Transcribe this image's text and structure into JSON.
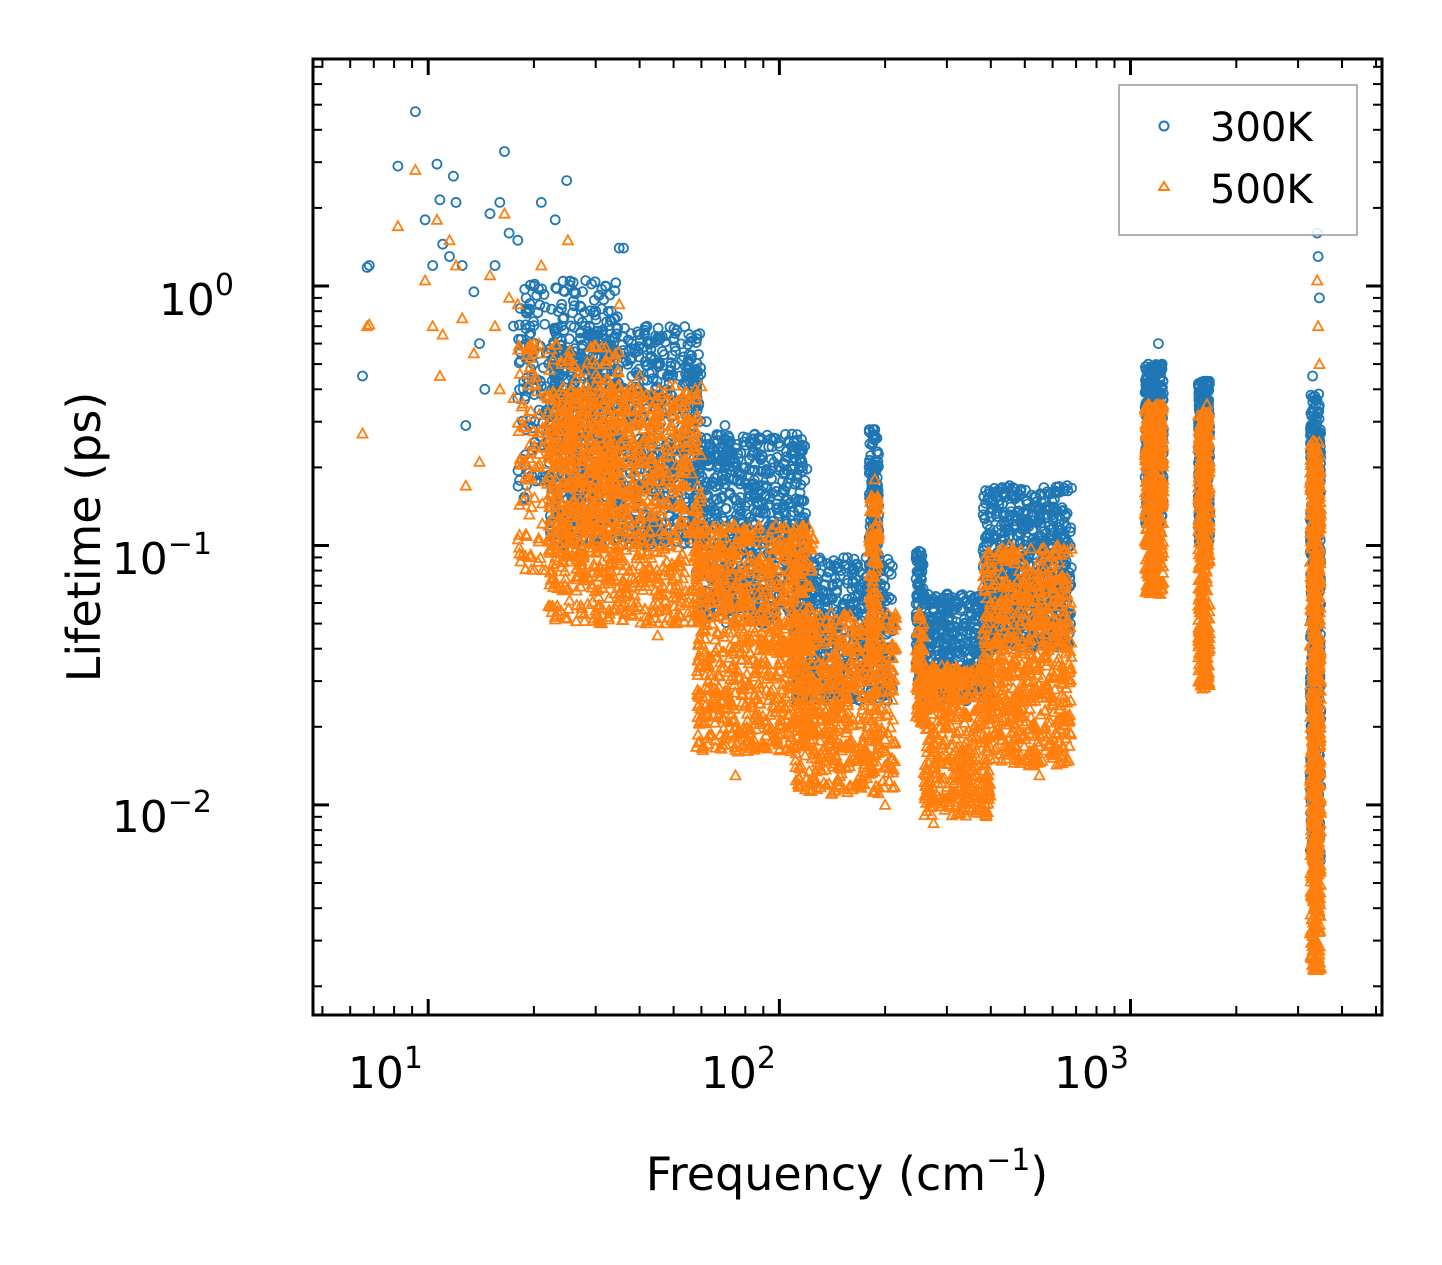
{
  "chart_data": {
    "type": "scatter",
    "xscale": "log",
    "yscale": "log",
    "xlim": [
      4.7,
      5200
    ],
    "ylim": [
      0.00155,
      7.5
    ],
    "xlabel": {
      "text": "Frequency (cm",
      "sup": "−1",
      "tail": ")"
    },
    "ylabel": "Lifetime (ps)",
    "xticks": [
      {
        "value": 10,
        "base": "10",
        "exp": "1"
      },
      {
        "value": 100,
        "base": "10",
        "exp": "2"
      },
      {
        "value": 1000,
        "base": "10",
        "exp": "3"
      }
    ],
    "yticks": [
      {
        "value": 1,
        "base": "10",
        "exp": "0"
      },
      {
        "value": 0.1,
        "base": "10",
        "exp": "−1"
      },
      {
        "value": 0.01,
        "base": "10",
        "exp": "−2"
      }
    ],
    "legend_position": "top-right",
    "series": [
      {
        "name": "300K",
        "color": "#1f77b4",
        "marker": "circle",
        "points": [
          [
            6.5,
            0.45
          ],
          [
            6.7,
            1.18
          ],
          [
            6.8,
            1.2
          ],
          [
            8.2,
            2.9
          ],
          [
            9.2,
            4.7
          ],
          [
            9.8,
            1.8
          ],
          [
            10.3,
            1.2
          ],
          [
            10.6,
            2.95
          ],
          [
            10.8,
            2.15
          ],
          [
            11.0,
            1.45
          ],
          [
            11.5,
            1.3
          ],
          [
            11.8,
            2.65
          ],
          [
            12.0,
            2.1
          ],
          [
            12.5,
            1.2
          ],
          [
            12.8,
            0.29
          ],
          [
            13.5,
            0.95
          ],
          [
            14.0,
            0.6
          ],
          [
            14.5,
            0.4
          ],
          [
            15.0,
            1.9
          ],
          [
            15.5,
            1.2
          ],
          [
            16.0,
            2.1
          ],
          [
            16.5,
            3.3
          ],
          [
            17.0,
            1.6
          ],
          [
            17.5,
            0.7
          ],
          [
            18.0,
            1.5
          ],
          [
            19.0,
            0.9
          ],
          [
            20.0,
            1.0
          ],
          [
            21.0,
            2.1
          ],
          [
            22.0,
            0.55
          ],
          [
            23.0,
            1.8
          ],
          [
            24.0,
            0.85
          ],
          [
            24.8,
            2.55
          ],
          [
            26.0,
            0.95
          ],
          [
            28.0,
            0.7
          ],
          [
            30.0,
            0.8
          ],
          [
            32.0,
            1.0
          ],
          [
            34.0,
            0.75
          ],
          [
            35.0,
            1.4
          ],
          [
            36.0,
            1.4
          ],
          [
            38.0,
            0.6
          ],
          [
            40.0,
            0.65
          ],
          [
            42.0,
            0.7
          ],
          [
            45.0,
            0.5
          ],
          [
            48.0,
            0.45
          ],
          [
            50.0,
            0.62
          ],
          [
            52.0,
            0.45
          ],
          [
            55.0,
            0.5
          ],
          [
            58.0,
            0.38
          ],
          [
            62.0,
            0.3
          ],
          [
            70.0,
            0.29
          ],
          [
            72.0,
            0.26
          ],
          [
            80.0,
            0.2
          ],
          [
            90.0,
            0.17
          ],
          [
            100.0,
            0.13
          ],
          [
            110.0,
            0.11
          ],
          [
            120.0,
            0.09
          ],
          [
            150.0,
            0.08
          ],
          [
            187.0,
            0.28
          ],
          [
            210.0,
            0.028
          ],
          [
            250.0,
            0.095
          ],
          [
            270.0,
            0.046
          ],
          [
            300.0,
            0.065
          ],
          [
            350.0,
            0.05
          ],
          [
            400.0,
            0.08
          ],
          [
            450.0,
            0.1
          ],
          [
            500.0,
            0.1
          ],
          [
            550.0,
            0.13
          ],
          [
            620.0,
            0.16
          ],
          [
            660.0,
            0.17
          ],
          [
            1150.0,
            0.45
          ],
          [
            1200.0,
            0.6
          ],
          [
            1230.0,
            0.5
          ],
          [
            1600.0,
            0.42
          ],
          [
            1650.0,
            0.43
          ],
          [
            3300.0,
            0.45
          ],
          [
            3400.0,
            1.6
          ],
          [
            3420.0,
            1.3
          ],
          [
            3450.0,
            0.9
          ]
        ],
        "bands": [
          {
            "x": [
              22,
              60
            ],
            "y": [
              0.1,
              0.7
            ],
            "n": 900
          },
          {
            "x": [
              18,
              35
            ],
            "y": [
              0.15,
              1.05
            ],
            "n": 300
          },
          {
            "x": [
              58,
              120
            ],
            "y": [
              0.05,
              0.27
            ],
            "n": 700
          },
          {
            "x": [
              110,
              210
            ],
            "y": [
              0.025,
              0.09
            ],
            "n": 500
          },
          {
            "x": [
              180,
              192
            ],
            "y": [
              0.08,
              0.28
            ],
            "n": 120
          },
          {
            "x": [
              245,
              258
            ],
            "y": [
              0.03,
              0.095
            ],
            "n": 100
          },
          {
            "x": [
              260,
              400
            ],
            "y": [
              0.025,
              0.065
            ],
            "n": 400
          },
          {
            "x": [
              380,
              680
            ],
            "y": [
              0.04,
              0.17
            ],
            "n": 700
          },
          {
            "x": [
              1100,
              1240
            ],
            "y": [
              0.12,
              0.5
            ],
            "n": 350
          },
          {
            "x": [
              1560,
              1680
            ],
            "y": [
              0.1,
              0.43
            ],
            "n": 350
          },
          {
            "x": [
              3250,
              3480
            ],
            "y": [
              0.006,
              0.4
            ],
            "n": 500
          }
        ]
      },
      {
        "name": "500K",
        "color": "#ff7f0e",
        "marker": "triangle",
        "points": [
          [
            6.5,
            0.27
          ],
          [
            6.7,
            0.7
          ],
          [
            6.8,
            0.71
          ],
          [
            8.2,
            1.7
          ],
          [
            9.2,
            2.8
          ],
          [
            9.8,
            1.05
          ],
          [
            10.3,
            0.7
          ],
          [
            10.6,
            1.8
          ],
          [
            10.8,
            0.45
          ],
          [
            11.0,
            0.65
          ],
          [
            11.5,
            1.5
          ],
          [
            12.0,
            1.2
          ],
          [
            12.5,
            0.75
          ],
          [
            12.8,
            0.17
          ],
          [
            13.5,
            0.55
          ],
          [
            14.0,
            0.21
          ],
          [
            15.0,
            1.1
          ],
          [
            15.5,
            0.7
          ],
          [
            16.0,
            0.4
          ],
          [
            16.5,
            1.9
          ],
          [
            17.0,
            0.9
          ],
          [
            17.5,
            0.37
          ],
          [
            18.0,
            0.85
          ],
          [
            19.0,
            0.11
          ],
          [
            20.0,
            0.6
          ],
          [
            21.0,
            1.2
          ],
          [
            22.0,
            0.38
          ],
          [
            23.0,
            0.2
          ],
          [
            24.0,
            0.5
          ],
          [
            25.0,
            1.5
          ],
          [
            26.0,
            0.5
          ],
          [
            28.0,
            0.08
          ],
          [
            30.0,
            0.5
          ],
          [
            32.0,
            0.58
          ],
          [
            35.0,
            0.85
          ],
          [
            40.0,
            0.45
          ],
          [
            45.0,
            0.045
          ],
          [
            50.0,
            0.35
          ],
          [
            55.0,
            0.3
          ],
          [
            60.0,
            0.022
          ],
          [
            70.0,
            0.018
          ],
          [
            75.0,
            0.013
          ],
          [
            80.0,
            0.06
          ],
          [
            90.0,
            0.04
          ],
          [
            100.0,
            0.05
          ],
          [
            130.0,
            0.015
          ],
          [
            150.0,
            0.014
          ],
          [
            187.0,
            0.18
          ],
          [
            200.0,
            0.01
          ],
          [
            210.0,
            0.015
          ],
          [
            250.0,
            0.055
          ],
          [
            275.0,
            0.0085
          ],
          [
            300.0,
            0.02
          ],
          [
            350.0,
            0.03
          ],
          [
            400.0,
            0.015
          ],
          [
            450.0,
            0.045
          ],
          [
            500.0,
            0.055
          ],
          [
            550.0,
            0.013
          ],
          [
            620.0,
            0.1
          ],
          [
            660.0,
            0.025
          ],
          [
            1150.0,
            0.28
          ],
          [
            1200.0,
            0.35
          ],
          [
            1230.0,
            0.3
          ],
          [
            1600.0,
            0.3
          ],
          [
            1650.0,
            0.35
          ],
          [
            3300.0,
            0.2
          ],
          [
            3400.0,
            1.05
          ],
          [
            3420.0,
            0.7
          ],
          [
            3450.0,
            0.5
          ]
        ],
        "bands": [
          {
            "x": [
              22,
              60
            ],
            "y": [
              0.05,
              0.42
            ],
            "n": 1000
          },
          {
            "x": [
              18,
              35
            ],
            "y": [
              0.08,
              0.6
            ],
            "n": 300
          },
          {
            "x": [
              58,
              125
            ],
            "y": [
              0.016,
              0.12
            ],
            "n": 900
          },
          {
            "x": [
              110,
              215
            ],
            "y": [
              0.011,
              0.055
            ],
            "n": 600
          },
          {
            "x": [
              180,
              192
            ],
            "y": [
              0.03,
              0.16
            ],
            "n": 120
          },
          {
            "x": [
              245,
              258
            ],
            "y": [
              0.02,
              0.055
            ],
            "n": 80
          },
          {
            "x": [
              258,
              400
            ],
            "y": [
              0.009,
              0.035
            ],
            "n": 450
          },
          {
            "x": [
              380,
              680
            ],
            "y": [
              0.014,
              0.1
            ],
            "n": 700
          },
          {
            "x": [
              1100,
              1240
            ],
            "y": [
              0.065,
              0.35
            ],
            "n": 400
          },
          {
            "x": [
              1560,
              1680
            ],
            "y": [
              0.028,
              0.33
            ],
            "n": 400
          },
          {
            "x": [
              3250,
              3480
            ],
            "y": [
              0.0023,
              0.26
            ],
            "n": 700
          }
        ]
      }
    ]
  }
}
